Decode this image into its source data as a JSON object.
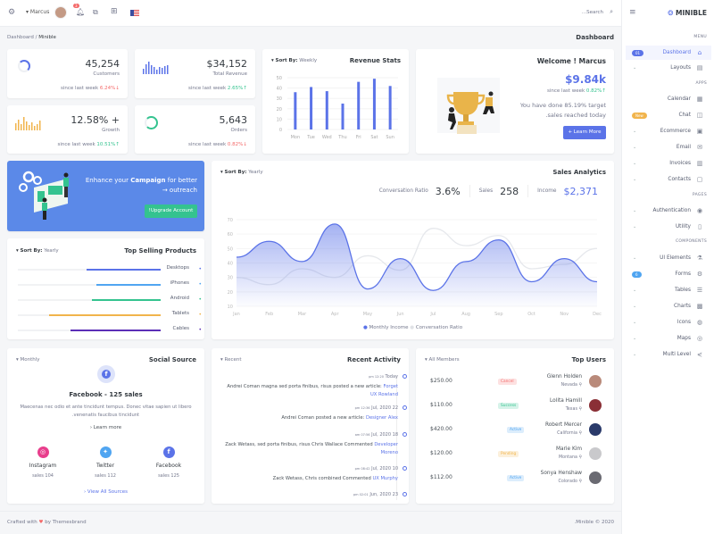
{
  "topbar": {
    "user": "Marcus",
    "notification_count": "3",
    "search_placeholder": "...Search"
  },
  "brand": "MINIBLE",
  "breadcrumb": [
    "Dashboard",
    "Minible"
  ],
  "page_title": "Dashboard",
  "stats": [
    {
      "value": "45,254",
      "label": "Customers",
      "since": "since last week",
      "change": "6.24%",
      "trend": "down"
    },
    {
      "value": "$34,152",
      "label": "Total Revenue",
      "since": "since last week",
      "change": "2.65%",
      "trend": "up"
    },
    {
      "value": "12.58% +",
      "label": "Growth",
      "since": "since last week",
      "change": "10.51%",
      "trend": "up"
    },
    {
      "value": "5,643",
      "label": "Orders",
      "since": "since last week",
      "change": "0.82%",
      "trend": "down"
    }
  ],
  "revenue_stats": {
    "title": "Revenue Stats",
    "sort_label": "Sort By:",
    "sort_value": "Weekly"
  },
  "welcome": {
    "title": "Welcome ! Marcus",
    "amount": "$9.84k",
    "since": "since last week",
    "change": "0.82%",
    "text1": "You have done 85.19% target",
    "text2": ".sales reached today",
    "button": "+ Learn More"
  },
  "campaign": {
    "pre": "Enhance your ",
    "bold": "Campaign",
    "post": " for better",
    "line2": "→ outreach",
    "button": "!Upgrade Account"
  },
  "top_selling": {
    "title": "Top Selling Products",
    "sort_label": "Sort By:",
    "sort_value": "Yearly",
    "items": [
      {
        "label": "Desktops",
        "pct": 52,
        "color": "#5b73e8"
      },
      {
        "label": "iPhones",
        "pct": 45,
        "color": "#50a5f1"
      },
      {
        "label": "Android",
        "pct": 48,
        "color": "#34c38f"
      },
      {
        "label": "Tablets",
        "pct": 78,
        "color": "#f1b44c"
      },
      {
        "label": "Cables",
        "pct": 63,
        "color": "#5b2fb7"
      }
    ]
  },
  "sales_analytics": {
    "title": "Sales Analytics",
    "sort_label": "Sort By:",
    "sort_value": "Yearly",
    "metrics": [
      {
        "label": "Conversation Ratio",
        "value": "3.6%"
      },
      {
        "label": "Sales",
        "value": "258"
      },
      {
        "label": "Income",
        "value": "$2,371"
      }
    ]
  },
  "social": {
    "title": "Social Source",
    "filter": "Monthly",
    "headline": "Facebook - 125 sales",
    "desc1": "Maecenas nec odio et ante tincidunt tempus. Donec vitae sapien ut libero",
    "desc2": ".venenatis faucibus tincidunt",
    "learn": "Learn more",
    "view_all": "View All Sources",
    "sources": [
      {
        "name": "Instagram",
        "sales": "sales 104",
        "color": "#e83e8c",
        "icon": "instagram-icon"
      },
      {
        "name": "Twitter",
        "sales": "sales 112",
        "color": "#50a5f1",
        "icon": "twitter-icon"
      },
      {
        "name": "Facebook",
        "sales": "sales 125",
        "color": "#5b73e8",
        "icon": "facebook-icon"
      }
    ]
  },
  "activity": {
    "title": "Recent Activity",
    "filter": "Recent",
    "items": [
      {
        "ampm": "pm 12:20",
        "date": "Today",
        "text": "Andrei Coman magna sed porta finibus, risus posted a new article:",
        "link": "Forget UX Rowland"
      },
      {
        "ampm": "pm 12:36",
        "date": "Jul, 2020 22",
        "text": "Andrei Coman posted a new article:",
        "link": "Designer Alex"
      },
      {
        "ampm": "am 07:56",
        "date": "Jul, 2020 18",
        "text": "Zack Wetass, sed porta finibus, risus Chris Wallace Commented",
        "link": "Developer Moreno"
      },
      {
        "ampm": "pm 08:42",
        "date": "Jul, 2020 10",
        "text": "Zack Wetass, Chris combined Commented",
        "link": "UX Murphy"
      },
      {
        "ampm": "pm 02:01",
        "date": "Jun, 2020 23",
        "text": "",
        "link": ""
      }
    ]
  },
  "top_users": {
    "title": "Top Users",
    "filter": "All Members",
    "rows": [
      {
        "amount": "$250.00",
        "status": "Cancel",
        "name": "Glenn Holden",
        "location": "Nevada"
      },
      {
        "amount": "$110.00",
        "status": "Success",
        "name": "Lolita Hamill",
        "location": "Texas"
      },
      {
        "amount": "$420.00",
        "status": "Active",
        "name": "Robert Mercer",
        "location": "California"
      },
      {
        "amount": "$120.00",
        "status": "Pending",
        "name": "Marie Kim",
        "location": "Montana"
      },
      {
        "amount": "$112.00",
        "status": "Active",
        "name": "Sonya Henshaw",
        "location": "Colorado"
      }
    ]
  },
  "footer": {
    "left_pre": "Crafted with",
    "left_post": "by Themesbrand",
    "right": ".Minible © 2020"
  },
  "sidebar": {
    "sections": {
      "menu": "MENU",
      "apps": "APPS",
      "pages": "PAGES",
      "components": "COMPONENTS"
    },
    "items": [
      {
        "label": "Dashboard",
        "icon": "home-icon",
        "badge": "01",
        "active": true
      },
      {
        "label": "Layouts",
        "icon": "layout-icon",
        "chevron": true
      },
      {
        "label": "Calendar",
        "icon": "calendar-icon"
      },
      {
        "label": "Chat",
        "icon": "chat-icon",
        "badge": "New"
      },
      {
        "label": "Ecommerce",
        "icon": "store-icon",
        "chevron": true
      },
      {
        "label": "Email",
        "icon": "envelope-icon",
        "chevron": true
      },
      {
        "label": "Invoices",
        "icon": "invoice-icon",
        "chevron": true
      },
      {
        "label": "Contacts",
        "icon": "contacts-icon",
        "chevron": true
      },
      {
        "label": "Authentication",
        "icon": "user-circle-icon",
        "chevron": true
      },
      {
        "label": "Utility",
        "icon": "file-icon",
        "chevron": true
      },
      {
        "label": "UI Elements",
        "icon": "flask-icon",
        "chevron": true
      },
      {
        "label": "Forms",
        "icon": "gear-icon",
        "badge": "6"
      },
      {
        "label": "Tables",
        "icon": "list-icon",
        "chevron": true
      },
      {
        "label": "Charts",
        "icon": "chart-icon",
        "chevron": true
      },
      {
        "label": "Icons",
        "icon": "globe-icon",
        "chevron": true
      },
      {
        "label": "Maps",
        "icon": "map-icon",
        "chevron": true
      },
      {
        "label": "Multi Level",
        "icon": "share-icon",
        "chevron": true
      }
    ]
  },
  "chart_data": [
    {
      "type": "bar",
      "title": "Revenue Stats",
      "categories": [
        "Mon",
        "Tue",
        "Wed",
        "Thu",
        "Fri",
        "Sat",
        "Sun"
      ],
      "values": [
        36,
        41,
        37,
        25,
        46,
        49,
        42
      ],
      "ylim": [
        0,
        50
      ],
      "yticks": [
        0,
        10,
        20,
        30,
        40,
        50
      ],
      "color": "#5b73e8"
    },
    {
      "type": "area",
      "title": "Sales Analytics",
      "categories": [
        "Jan",
        "Feb",
        "Mar",
        "Apr",
        "May",
        "Jun",
        "Jul",
        "Aug",
        "Sep",
        "Oct",
        "Nov",
        "Dec"
      ],
      "ylim": [
        10,
        70
      ],
      "yticks": [
        10,
        20,
        30,
        40,
        50,
        60,
        70
      ],
      "legend": "bottom",
      "series": [
        {
          "name": "Monthly Income",
          "values": [
            44,
            55,
            41,
            67,
            22,
            43,
            21,
            41,
            56,
            27,
            43,
            27
          ],
          "color": "#5b73e8"
        },
        {
          "name": "Conversation Ratio",
          "values": [
            30,
            25,
            36,
            30,
            45,
            35,
            64,
            52,
            59,
            36,
            39,
            50
          ],
          "color": "#e6e8ec"
        }
      ]
    }
  ]
}
